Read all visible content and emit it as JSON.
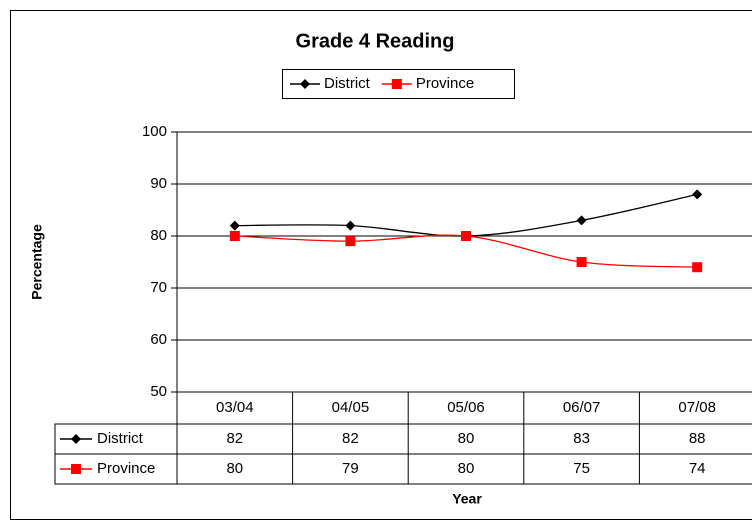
{
  "chart_data": {
    "type": "line",
    "title": "Grade 4 Reading",
    "x_label": "Year",
    "y_label": "Percentage",
    "categories": [
      "03/04",
      "04/05",
      "05/06",
      "06/07",
      "07/08"
    ],
    "series": [
      {
        "name": "District",
        "color": "#000000",
        "marker": "diamond",
        "values": [
          82,
          82,
          80,
          83,
          88
        ]
      },
      {
        "name": "Province",
        "color": "#ff0000",
        "marker": "square",
        "values": [
          80,
          79,
          80,
          75,
          74
        ]
      }
    ],
    "ylim": [
      50,
      100
    ],
    "yticks": [
      50,
      60,
      70,
      80,
      90,
      100
    ],
    "grid": true,
    "smooth": true,
    "legend": "top",
    "data_table": true
  }
}
